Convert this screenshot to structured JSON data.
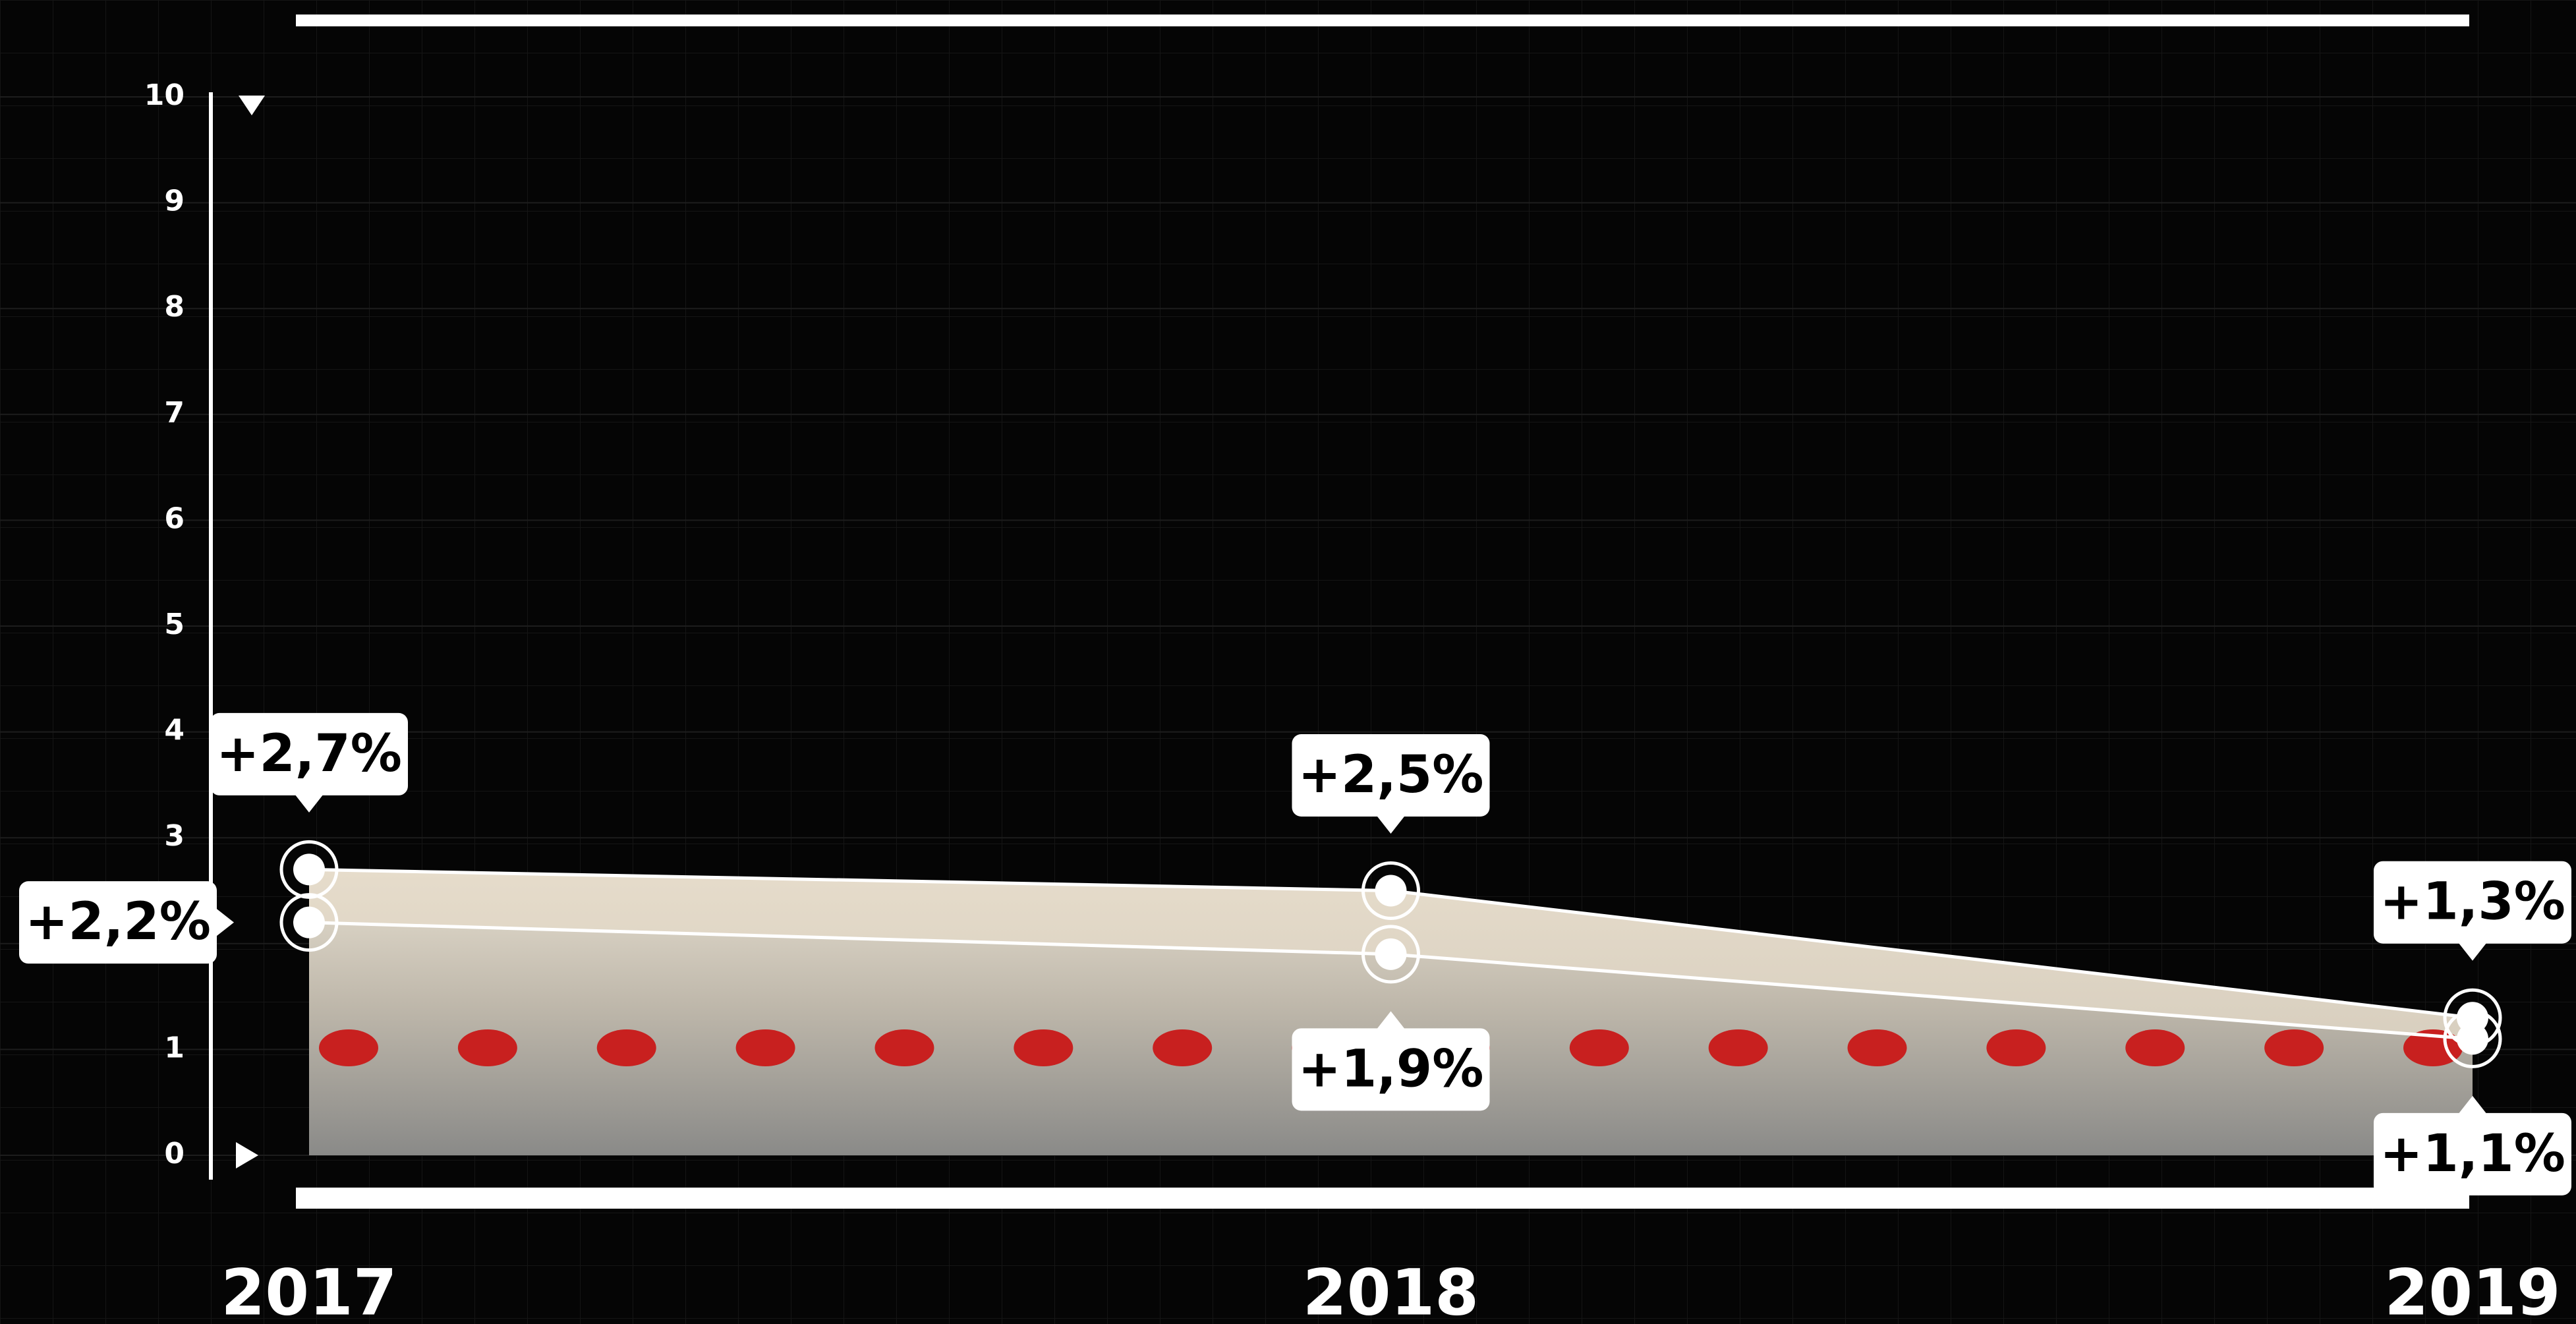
{
  "chart_data": {
    "type": "line",
    "categories": [
      "2017",
      "2018",
      "2019"
    ],
    "series": [
      {
        "color": "#ffffff",
        "values": [
          2.7,
          2.5,
          1.3
        ],
        "value_labels": [
          "+2,7%",
          "+2,5%",
          "+1,3%"
        ]
      },
      {
        "color": "#ffffff",
        "values": [
          2.2,
          1.9,
          1.1
        ],
        "value_labels": [
          "+2,2%",
          "+1,9%",
          "+1,1%"
        ]
      }
    ],
    "ylim": [
      0,
      10
    ],
    "yticks": [
      0,
      1,
      2,
      3,
      4,
      5,
      6,
      7,
      8,
      9,
      10
    ],
    "grid": true
  }
}
